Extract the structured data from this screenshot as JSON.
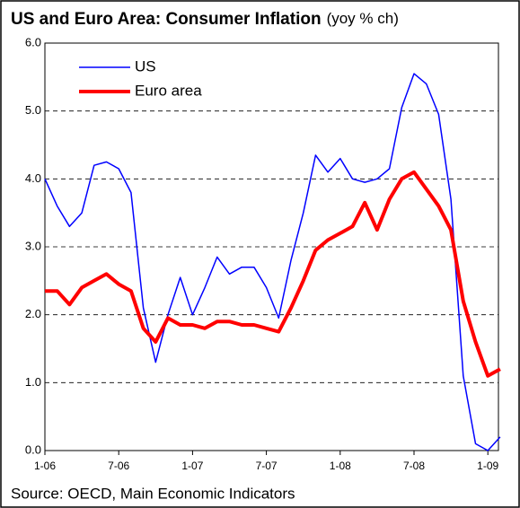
{
  "chart_data": {
    "type": "line",
    "title": "US and Euro Area: Consumer Inflation",
    "subtitle": "(yoy % ch)",
    "source": "Source: OECD, Main Economic Indicators",
    "categories": [
      "1-06",
      null,
      null,
      null,
      null,
      null,
      "7-06",
      null,
      null,
      null,
      null,
      null,
      "1-07",
      null,
      null,
      null,
      null,
      null,
      "7-07",
      null,
      null,
      null,
      null,
      null,
      "1-08",
      null,
      null,
      null,
      null,
      null,
      "7-08",
      null,
      null,
      null,
      null,
      null,
      "1-09",
      null
    ],
    "series": [
      {
        "name": "US",
        "color": "#0000ff",
        "values": [
          4.0,
          3.6,
          3.3,
          3.5,
          4.2,
          4.25,
          4.15,
          3.8,
          2.1,
          1.3,
          2.0,
          2.55,
          2.0,
          2.4,
          2.85,
          2.6,
          2.7,
          2.7,
          2.4,
          1.95,
          2.8,
          3.5,
          4.35,
          4.1,
          4.3,
          4.0,
          3.95,
          4.0,
          4.15,
          5.05,
          5.55,
          5.4,
          4.95,
          3.7,
          1.1,
          0.1,
          0.0,
          0.2
        ]
      },
      {
        "name": "Euro area",
        "color": "#ff0000",
        "values": [
          2.35,
          2.35,
          2.15,
          2.4,
          2.5,
          2.6,
          2.45,
          2.35,
          1.8,
          1.6,
          1.95,
          1.85,
          1.85,
          1.8,
          1.9,
          1.9,
          1.85,
          1.85,
          1.8,
          1.75,
          2.1,
          2.5,
          2.95,
          3.1,
          3.2,
          3.3,
          3.65,
          3.25,
          3.7,
          4.0,
          4.1,
          3.85,
          3.6,
          3.25,
          2.2,
          1.6,
          1.1,
          1.2
        ]
      }
    ],
    "ylim": [
      0,
      6
    ],
    "yticks": [
      {
        "value": 0,
        "label": "0.0"
      },
      {
        "value": 1,
        "label": "1.0"
      },
      {
        "value": 2,
        "label": "2.0"
      },
      {
        "value": 3,
        "label": "3.0"
      },
      {
        "value": 4,
        "label": "4.0"
      },
      {
        "value": 5,
        "label": "5.0"
      },
      {
        "value": 6,
        "label": "6.0"
      }
    ],
    "grid": true,
    "legend": "upper left"
  }
}
